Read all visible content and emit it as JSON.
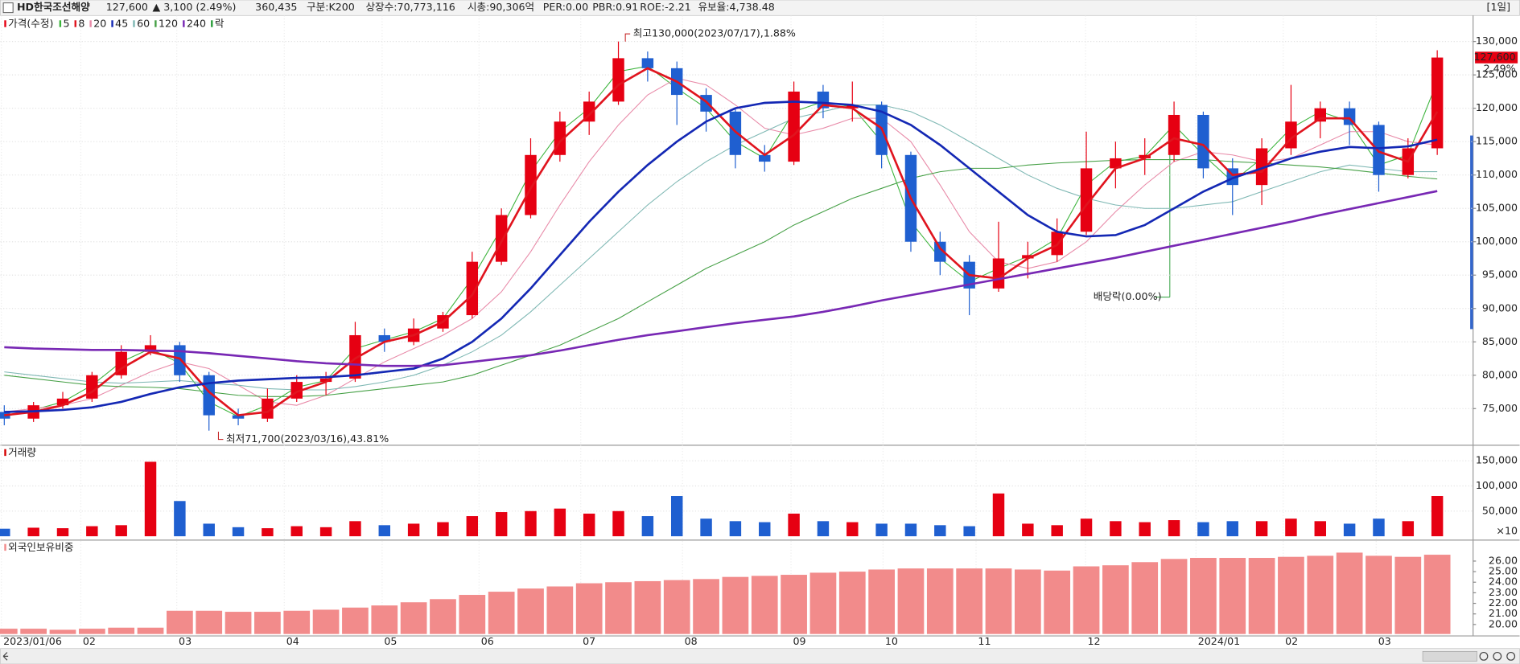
{
  "header": {
    "name": "HD한국조선해양",
    "price": "127,600",
    "change": "▲ 3,100 (2.49%)",
    "volume": "360,435",
    "group": "구분:K200",
    "listed": "상장수:70,773,116",
    "mcap": "시총:90,306억",
    "per": "PER:0.00",
    "pbr": "PBR:0.91",
    "roe": "ROE:-2.21",
    "reserve": "유보율:4,738.48",
    "period": "[1일]"
  },
  "chart_data": [
    {
      "type": "candlestick",
      "legend_label": "가격(수정)",
      "legend_extra": "락",
      "up_color": "#e60012",
      "down_color": "#1f5fd0",
      "last_label": "127,600",
      "last_change": "2.49%",
      "x_axis_labels": [
        "2023/01/06",
        "02",
        "03",
        "04",
        "05",
        "06",
        "07",
        "08",
        "09",
        "10",
        "11",
        "12",
        "2024/01",
        "02",
        "03"
      ],
      "open": [
        74500,
        73500,
        75500,
        76500,
        80000,
        83500,
        84500,
        80000,
        74000,
        73500,
        76500,
        79000,
        79500,
        86000,
        85000,
        87000,
        89000,
        97000,
        104000,
        113000,
        118000,
        121000,
        127500,
        126000,
        122000,
        119500,
        113000,
        112000,
        122500,
        120000,
        120500,
        113000,
        100000,
        97000,
        93000,
        97500,
        98000,
        101500,
        111000,
        112500,
        113000,
        119000,
        111000,
        108500,
        114000,
        118000,
        120000,
        117500,
        110000,
        114000
      ],
      "high": [
        75500,
        76000,
        77500,
        80500,
        84500,
        86000,
        85000,
        80500,
        75000,
        78000,
        80000,
        80500,
        88000,
        87000,
        88500,
        89500,
        98500,
        105000,
        115500,
        119500,
        122500,
        130000,
        128500,
        127000,
        123000,
        120000,
        114500,
        124000,
        123500,
        124000,
        121000,
        113500,
        101500,
        98000,
        103000,
        100000,
        103500,
        116500,
        115000,
        115500,
        121000,
        119500,
        112500,
        115500,
        123500,
        121000,
        121000,
        118000,
        115500,
        128700
      ],
      "low": [
        72500,
        73000,
        75000,
        76000,
        79500,
        83000,
        79000,
        71700,
        72500,
        73000,
        76000,
        77000,
        79000,
        83500,
        84500,
        86500,
        88500,
        96500,
        103500,
        112000,
        116000,
        120500,
        124000,
        117500,
        116500,
        111000,
        110500,
        111500,
        118500,
        118000,
        111000,
        98500,
        95000,
        89000,
        92500,
        94500,
        97000,
        101000,
        108000,
        110000,
        112000,
        109500,
        104000,
        105500,
        113000,
        115500,
        114500,
        107500,
        109500,
        113000
      ],
      "close": [
        73500,
        75500,
        76500,
        80000,
        83500,
        84500,
        80000,
        74000,
        73500,
        76500,
        79000,
        79500,
        86000,
        85000,
        87000,
        89000,
        97000,
        104000,
        113000,
        118000,
        121000,
        127500,
        126000,
        122000,
        119500,
        113000,
        112000,
        122500,
        120000,
        120500,
        113000,
        100000,
        97000,
        93000,
        97500,
        98000,
        101500,
        111000,
        112500,
        113000,
        119000,
        111000,
        108500,
        114000,
        118000,
        120000,
        117500,
        110000,
        114000,
        127600
      ],
      "ma_series": [
        {
          "name": "5",
          "color": "#3cb43c",
          "values": [
            73800,
            74800,
            76000,
            78500,
            82000,
            84000,
            81800,
            76000,
            73800,
            75500,
            78200,
            79200,
            84000,
            85300,
            86500,
            88500,
            94500,
            102000,
            110500,
            116500,
            120000,
            125500,
            126300,
            123000,
            120000,
            115000,
            112500,
            119500,
            121000,
            120200,
            115000,
            103000,
            97500,
            94000,
            96000,
            97800,
            100500,
            108500,
            112000,
            112800,
            117500,
            113000,
            109000,
            112500,
            117000,
            119500,
            118000,
            111500,
            113000,
            124000
          ]
        },
        {
          "name": "8",
          "color": "#e0141e",
          "values": [
            74000,
            74500,
            75500,
            77500,
            81000,
            83500,
            82500,
            77500,
            74000,
            74500,
            77500,
            79000,
            82500,
            85000,
            86000,
            88000,
            92000,
            100000,
            108000,
            115000,
            119000,
            123500,
            126000,
            124000,
            121000,
            116500,
            113000,
            116000,
            120500,
            120000,
            117000,
            106500,
            99000,
            95000,
            94500,
            97500,
            99500,
            105500,
            111000,
            112500,
            115500,
            114500,
            110000,
            110500,
            115500,
            118500,
            118500,
            113500,
            112000,
            119500
          ]
        },
        {
          "name": "20",
          "color": "#e88aa8",
          "values": [
            74500,
            75000,
            75500,
            76500,
            78500,
            80500,
            82000,
            81000,
            78500,
            76000,
            75500,
            77000,
            79500,
            82000,
            84000,
            86000,
            88500,
            92500,
            98500,
            105500,
            112000,
            117500,
            122000,
            124500,
            123500,
            120500,
            117000,
            116000,
            117000,
            118500,
            118500,
            115000,
            108500,
            101500,
            97000,
            96000,
            97000,
            100000,
            104500,
            108500,
            112000,
            113500,
            113000,
            112000,
            112500,
            114500,
            116500,
            116500,
            115000,
            114500
          ]
        },
        {
          "name": "45",
          "color": "#1428b4",
          "values": [
            74500,
            74600,
            74800,
            75200,
            76000,
            77200,
            78200,
            78800,
            79200,
            79400,
            79600,
            79700,
            80000,
            80500,
            81000,
            82500,
            85000,
            88500,
            93000,
            98000,
            103000,
            107500,
            111500,
            115000,
            118000,
            120000,
            120800,
            121000,
            120800,
            120500,
            119500,
            117500,
            114500,
            111000,
            107500,
            104000,
            101500,
            100800,
            101000,
            102500,
            105000,
            107500,
            109500,
            111000,
            112500,
            113500,
            114200,
            114000,
            114300,
            115300
          ]
        },
        {
          "name": "60",
          "color": "#7fb8b4",
          "values": [
            80500,
            80000,
            79500,
            79000,
            78800,
            79000,
            79200,
            78800,
            78500,
            78000,
            77800,
            77800,
            78300,
            79000,
            80000,
            81500,
            83500,
            86000,
            89500,
            93500,
            97500,
            101500,
            105500,
            109000,
            112000,
            114500,
            116500,
            118500,
            119500,
            120500,
            120500,
            119500,
            117500,
            115000,
            112500,
            110000,
            108000,
            106500,
            105500,
            105000,
            105000,
            105500,
            106000,
            107500,
            109000,
            110500,
            111500,
            111000,
            110500,
            110500
          ]
        },
        {
          "name": "120",
          "color": "#46a046",
          "values": [
            80000,
            79500,
            79000,
            78500,
            78300,
            78200,
            78000,
            77500,
            77000,
            76800,
            76800,
            77000,
            77500,
            78000,
            78500,
            79000,
            80000,
            81500,
            83000,
            84500,
            86500,
            88500,
            91000,
            93500,
            96000,
            98000,
            100000,
            102500,
            104500,
            106500,
            108000,
            109500,
            110500,
            111000,
            111000,
            111500,
            111800,
            112000,
            112200,
            112300,
            112300,
            112300,
            112000,
            111800,
            111500,
            111200,
            110800,
            110300,
            109800,
            109400
          ]
        },
        {
          "name": "240",
          "color": "#7828b4",
          "values": [
            84200,
            84000,
            83900,
            83800,
            83800,
            83700,
            83600,
            83300,
            82900,
            82500,
            82100,
            81800,
            81600,
            81400,
            81400,
            81500,
            82000,
            82500,
            83000,
            83700,
            84500,
            85300,
            86000,
            86600,
            87200,
            87800,
            88300,
            88800,
            89500,
            90300,
            91200,
            92000,
            92800,
            93600,
            94400,
            95200,
            96000,
            96800,
            97600,
            98500,
            99400,
            100300,
            101200,
            102100,
            103000,
            104000,
            104900,
            105800,
            106700,
            107600
          ]
        }
      ],
      "annotations": [
        {
          "text": "최고130,000(2023/07/17),1.88%"
        },
        {
          "text": "최저71,700(2023/03/16),43.81%"
        },
        {
          "text": "배당락(0.00%)"
        }
      ],
      "ylim": [
        69800,
        133900
      ],
      "grid": true,
      "yticks": [
        {
          "value": 75000,
          "label": "75,000"
        },
        {
          "value": 80000,
          "label": "80,000"
        },
        {
          "value": 85000,
          "label": "85,000"
        },
        {
          "value": 90000,
          "label": "90,000"
        },
        {
          "value": 95000,
          "label": "95,000"
        },
        {
          "value": 100000,
          "label": "100,000"
        },
        {
          "value": 105000,
          "label": "105,000"
        },
        {
          "value": 110000,
          "label": "110,000"
        },
        {
          "value": 115000,
          "label": "115,000"
        },
        {
          "value": 120000,
          "label": "120,000"
        },
        {
          "value": 125000,
          "label": "125,000"
        },
        {
          "value": 130000,
          "label": "130,000"
        }
      ]
    },
    {
      "type": "bar",
      "title": "거래량",
      "unit_label": "×10",
      "values": [
        15000,
        17000,
        16000,
        20000,
        22000,
        148000,
        70000,
        25000,
        18000,
        16000,
        20000,
        18000,
        30000,
        22000,
        25000,
        28000,
        40000,
        48000,
        50000,
        55000,
        45000,
        50000,
        40000,
        80000,
        35000,
        30000,
        28000,
        45000,
        30000,
        28000,
        25000,
        25000,
        22000,
        20000,
        85000,
        25000,
        22000,
        35000,
        30000,
        28000,
        32000,
        28000,
        30000,
        30000,
        35000,
        30000,
        25000,
        35000,
        30000,
        80000
      ],
      "ylim": [
        -3800,
        177000
      ],
      "yticks": [
        {
          "value": 50000,
          "label": "50,000"
        },
        {
          "value": 100000,
          "label": "100,000"
        },
        {
          "value": 150000,
          "label": "150,000"
        }
      ]
    },
    {
      "type": "bar",
      "title": "외국인보유비중",
      "color": "#f28b8b",
      "values": [
        19.6,
        19.6,
        19.5,
        19.6,
        19.7,
        19.7,
        21.3,
        21.3,
        21.2,
        21.2,
        21.3,
        21.4,
        21.6,
        21.8,
        22.1,
        22.4,
        22.8,
        23.1,
        23.4,
        23.6,
        23.9,
        24.0,
        24.1,
        24.2,
        24.3,
        24.5,
        24.6,
        24.7,
        24.9,
        25.0,
        25.2,
        25.3,
        25.3,
        25.3,
        25.3,
        25.2,
        25.1,
        25.5,
        25.6,
        25.9,
        26.2,
        26.3,
        26.3,
        26.3,
        26.4,
        26.5,
        26.8,
        26.5,
        26.4,
        26.6
      ],
      "ylim": [
        19.1,
        27.8
      ],
      "yticks": [
        {
          "value": 20,
          "label": "20.00"
        },
        {
          "value": 21,
          "label": "21.00"
        },
        {
          "value": 22,
          "label": "22.00"
        },
        {
          "value": 23,
          "label": "23.00"
        },
        {
          "value": 24,
          "label": "24.00"
        },
        {
          "value": 25,
          "label": "25.00"
        },
        {
          "value": 26,
          "label": "26.00"
        }
      ]
    }
  ]
}
